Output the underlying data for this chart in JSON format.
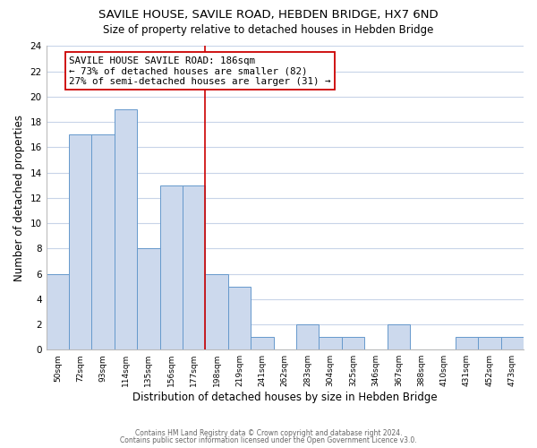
{
  "title": "SAVILE HOUSE, SAVILE ROAD, HEBDEN BRIDGE, HX7 6ND",
  "subtitle": "Size of property relative to detached houses in Hebden Bridge",
  "xlabel": "Distribution of detached houses by size in Hebden Bridge",
  "ylabel": "Number of detached properties",
  "bar_labels": [
    "50sqm",
    "72sqm",
    "93sqm",
    "114sqm",
    "135sqm",
    "156sqm",
    "177sqm",
    "198sqm",
    "219sqm",
    "241sqm",
    "262sqm",
    "283sqm",
    "304sqm",
    "325sqm",
    "346sqm",
    "367sqm",
    "388sqm",
    "410sqm",
    "431sqm",
    "452sqm",
    "473sqm"
  ],
  "bar_heights": [
    6,
    17,
    17,
    19,
    8,
    13,
    13,
    6,
    5,
    1,
    0,
    2,
    1,
    1,
    0,
    2,
    0,
    0,
    1,
    1,
    1
  ],
  "bar_color": "#ccd9ed",
  "bar_edge_color": "#6699cc",
  "vline_color": "#cc0000",
  "annotation_text": "SAVILE HOUSE SAVILE ROAD: 186sqm\n← 73% of detached houses are smaller (82)\n27% of semi-detached houses are larger (31) →",
  "annotation_box_edge": "#cc0000",
  "ylim": [
    0,
    24
  ],
  "yticks": [
    0,
    2,
    4,
    6,
    8,
    10,
    12,
    14,
    16,
    18,
    20,
    22,
    24
  ],
  "footer1": "Contains HM Land Registry data © Crown copyright and database right 2024.",
  "footer2": "Contains public sector information licensed under the Open Government Licence v3.0.",
  "background_color": "#ffffff",
  "grid_color": "#c8d4e8"
}
